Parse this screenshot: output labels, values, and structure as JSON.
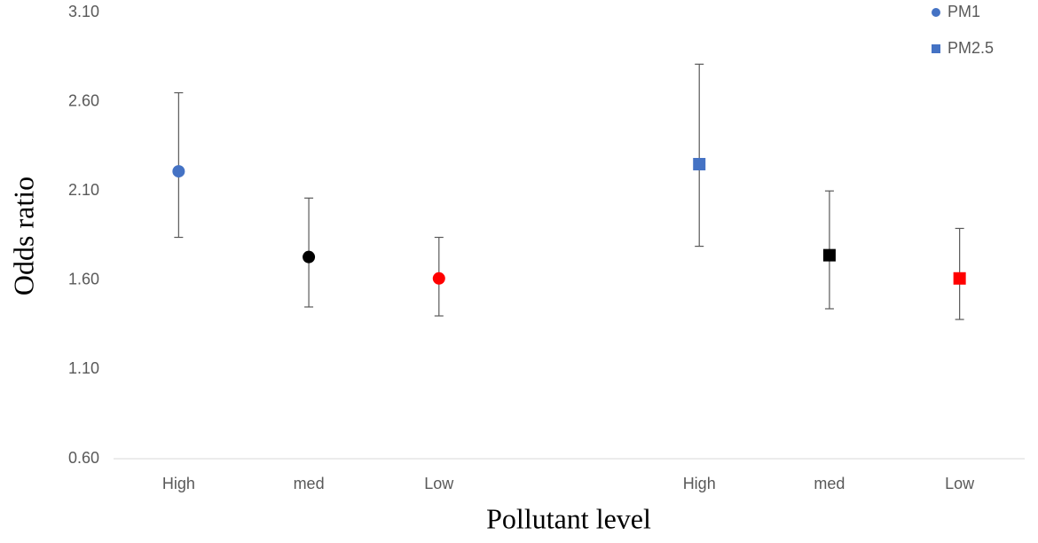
{
  "chart_data": {
    "type": "errorbar",
    "x_label": "Pollutant level",
    "y_label": "Odds ratio",
    "categories": [
      "High",
      "med",
      "Low",
      null,
      "High",
      "med",
      "Low"
    ],
    "ylim": [
      0.6,
      3.1
    ],
    "yticks": [
      {
        "value": 0.6,
        "label": "0.60"
      },
      {
        "value": 1.1,
        "label": "1.10"
      },
      {
        "value": 1.6,
        "label": "1.60"
      },
      {
        "value": 2.1,
        "label": "2.10"
      },
      {
        "value": 2.6,
        "label": "2.60"
      },
      {
        "value": 3.1,
        "label": "3.10"
      }
    ],
    "grid": false,
    "legend": "top-right",
    "series": [
      {
        "name": "PM1",
        "marker": "circle",
        "color": "#4472c4",
        "values": [
          2.21,
          1.73,
          1.61,
          null,
          null,
          null,
          null
        ],
        "lower": [
          1.84,
          1.45,
          1.4,
          null,
          null,
          null,
          null
        ],
        "upper": [
          2.65,
          2.06,
          1.84,
          null,
          null,
          null,
          null
        ],
        "point_colors": [
          "#4472c4",
          "#000000",
          "#ff0000",
          null,
          null,
          null,
          null
        ]
      },
      {
        "name": "PM2.5",
        "marker": "square",
        "color": "#4472c4",
        "values": [
          null,
          null,
          null,
          null,
          2.25,
          1.74,
          1.61
        ],
        "lower": [
          null,
          null,
          null,
          null,
          1.79,
          1.44,
          1.38
        ],
        "upper": [
          null,
          null,
          null,
          null,
          2.81,
          2.1,
          1.89
        ],
        "point_colors": [
          null,
          null,
          null,
          null,
          "#4472c4",
          "#000000",
          "#ff0000"
        ]
      }
    ]
  }
}
